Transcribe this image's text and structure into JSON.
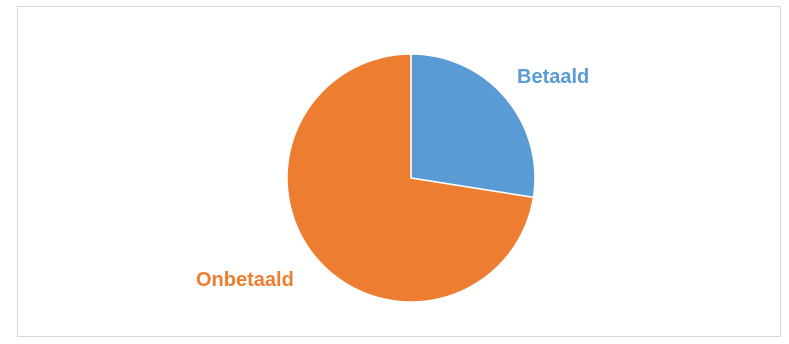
{
  "chart_data": {
    "type": "pie",
    "title": "",
    "start_angle_deg": 0,
    "direction": "clockwise",
    "legend": "none",
    "slices": [
      {
        "label": "Betaald",
        "value": 27.5,
        "color": "#5b9bd5"
      },
      {
        "label": "Onbetaald",
        "value": 72.5,
        "color": "#ed7d31"
      }
    ]
  }
}
